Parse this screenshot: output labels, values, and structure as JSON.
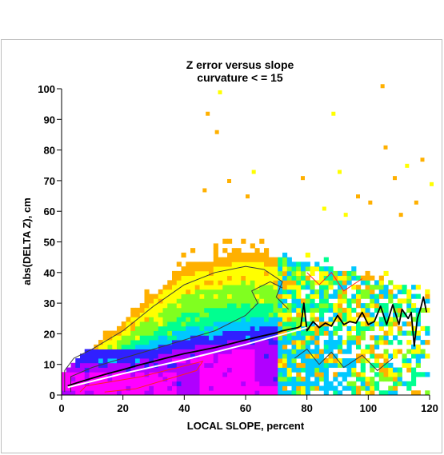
{
  "chart_data": {
    "type": "heatmap",
    "title": "Z error versus slope",
    "subtitle": "curvature < = 15",
    "xlabel": "LOCAL SLOPE, percent",
    "ylabel": "abs(DELTA Z), cm",
    "xlim": [
      0,
      120
    ],
    "ylim": [
      0,
      100
    ],
    "xticks": [
      "0",
      "20",
      "40",
      "60",
      "80",
      "100",
      "120"
    ],
    "yticks": [
      "0",
      "10",
      "20",
      "30",
      "40",
      "50",
      "60",
      "70",
      "80",
      "90",
      "100"
    ],
    "color_scale": [
      "#ff00ff",
      "#b000ff",
      "#3020ff",
      "#00c8ff",
      "#00ff90",
      "#80ff20",
      "#ffff00",
      "#ffb000"
    ],
    "colors": {
      "mean_line": "#000000",
      "fit_line": "#ffffff",
      "contour_dark": "#3a3a3a",
      "contour_red": "#ff2020"
    },
    "series": [
      {
        "name": "mean",
        "x": [
          2,
          5,
          10,
          15,
          20,
          25,
          30,
          35,
          40,
          45,
          50,
          55,
          60,
          65,
          70,
          72,
          75,
          77,
          78,
          79,
          80,
          82,
          84,
          86,
          88,
          90,
          92,
          94,
          96,
          98,
          100,
          102,
          104,
          106,
          108,
          110,
          111,
          113,
          114,
          115,
          116,
          117,
          118,
          119
        ],
        "y": [
          3,
          4,
          5.5,
          7,
          8.3,
          9.7,
          11,
          12.3,
          13.5,
          14.5,
          15.5,
          16.7,
          18,
          19.2,
          20.3,
          21,
          21.6,
          22,
          22.5,
          30,
          21,
          24,
          22,
          23.5,
          22.5,
          26,
          23,
          24,
          23.5,
          27,
          23,
          24,
          29,
          23,
          29.5,
          23,
          28,
          25,
          27,
          16,
          25,
          28,
          32,
          27
        ]
      },
      {
        "name": "fit",
        "x": [
          2,
          20,
          40,
          60,
          80
        ],
        "y": [
          2.5,
          7,
          11.5,
          16.5,
          22
        ]
      }
    ]
  }
}
